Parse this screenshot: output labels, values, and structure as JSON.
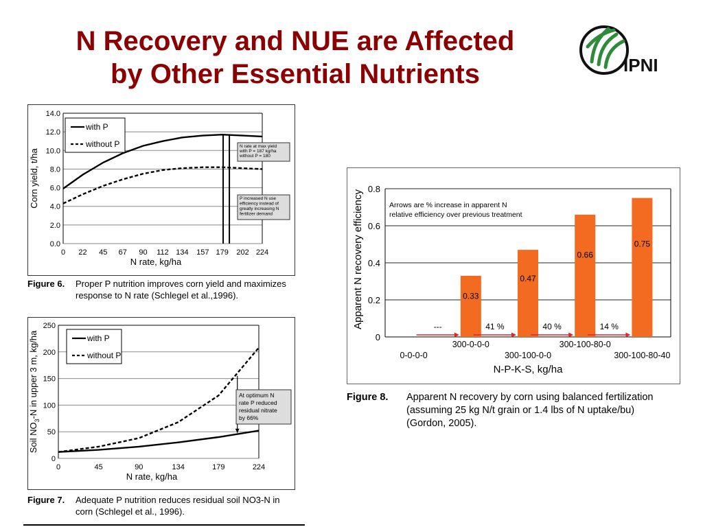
{
  "slide": {
    "title_line1": "N Recovery and NUE are Affected",
    "title_line2": "by Other Essential Nutrients",
    "logo_text": "IPNI",
    "colors": {
      "title": "#8b0000",
      "bar": "#f26b21",
      "arrow": "#e0262b",
      "logo_green": "#2e8b3a"
    }
  },
  "chart_data": [
    {
      "type": "line",
      "ylabel": "Corn yield, t/ha",
      "xlabel": "N rate, kg/ha",
      "x": [
        0,
        22,
        45,
        67,
        90,
        112,
        134,
        157,
        179,
        202,
        224
      ],
      "x_tick_labels": [
        "0",
        "22",
        "45",
        "67",
        "90",
        "112",
        "134",
        "157",
        "179",
        "202",
        "224"
      ],
      "y_ticks": [
        "0.0",
        "2.0",
        "4.0",
        "6.0",
        "8.0",
        "10.0",
        "12.0",
        "14.0"
      ],
      "ylim": [
        0,
        14
      ],
      "series": [
        {
          "name": "with P",
          "style": "solid",
          "values": [
            5.9,
            7.4,
            8.7,
            9.7,
            10.5,
            11.0,
            11.4,
            11.6,
            11.7,
            11.6,
            11.5
          ]
        },
        {
          "name": "without P",
          "style": "dashed",
          "values": [
            4.3,
            5.3,
            6.2,
            6.9,
            7.5,
            7.9,
            8.1,
            8.2,
            8.2,
            8.1,
            8.0
          ]
        }
      ],
      "vlines": [
        187,
        180
      ],
      "annotations": [
        "N rate at max yield",
        "with P = 187 kg/ha",
        "without P = 180",
        "P increased N use",
        "efficiency instead of",
        "greatly increasing N",
        "fertilizer demand"
      ],
      "caption_label": "Figure 6.",
      "caption_lines": [
        "Proper P nutrition improves corn yield and maximizes",
        "response to N rate (Schlegel et al.,1996)."
      ]
    },
    {
      "type": "line",
      "ylabel": "Soil NO3-N in upper 3 m, kg/ha",
      "xlabel": "N rate, kg/ha",
      "x": [
        0,
        45,
        90,
        134,
        179,
        224
      ],
      "x_tick_labels": [
        "0",
        "45",
        "90",
        "134",
        "179",
        "224"
      ],
      "y_ticks": [
        "0",
        "50",
        "100",
        "150",
        "200",
        "250"
      ],
      "ylim": [
        0,
        250
      ],
      "series": [
        {
          "name": "with P",
          "style": "solid",
          "values": [
            12,
            16,
            22,
            30,
            40,
            52
          ]
        },
        {
          "name": "without P",
          "style": "dashed",
          "values": [
            12,
            22,
            38,
            68,
            118,
            208
          ]
        }
      ],
      "annotations": [
        "At optimum N",
        "rate P reduced",
        "residual nitrate",
        "by 66%"
      ],
      "caption_label": "Figure 7.",
      "caption_lines": [
        "Adequate P nutrition reduces residual soil NO3-N in",
        "corn (Schlegel et al., 1996)."
      ]
    },
    {
      "type": "bar",
      "ylabel": "Apparent N recovery efficiency",
      "xlabel": "N-P-K-S, kg/ha",
      "categories": [
        "0-0-0-0",
        "300-0-0-0",
        "300-100-0-0",
        "300-100-80-0",
        "300-100-80-40"
      ],
      "values": [
        0,
        0.33,
        0.47,
        0.66,
        0.75
      ],
      "bar_labels": [
        "",
        "0.33",
        "0.47",
        "0.66",
        "0.75"
      ],
      "y_ticks": [
        "0",
        "0.2",
        "0.4",
        "0.6",
        "0.8"
      ],
      "ylim": [
        0,
        0.8
      ],
      "arrow_labels": [
        "---",
        "41 %",
        "40 %",
        "14 %"
      ],
      "annotation_lines": [
        "Arrows are % increase in apparent N",
        "relative efficiency over previous treatment"
      ],
      "caption_label": "Figure 8.",
      "caption_lines": [
        "Apparent N recovery by corn using balanced fertilization",
        "(assuming 25 kg N/t grain or 1.4 lbs of N uptake/bu)",
        "(Gordon, 2005)."
      ]
    }
  ]
}
